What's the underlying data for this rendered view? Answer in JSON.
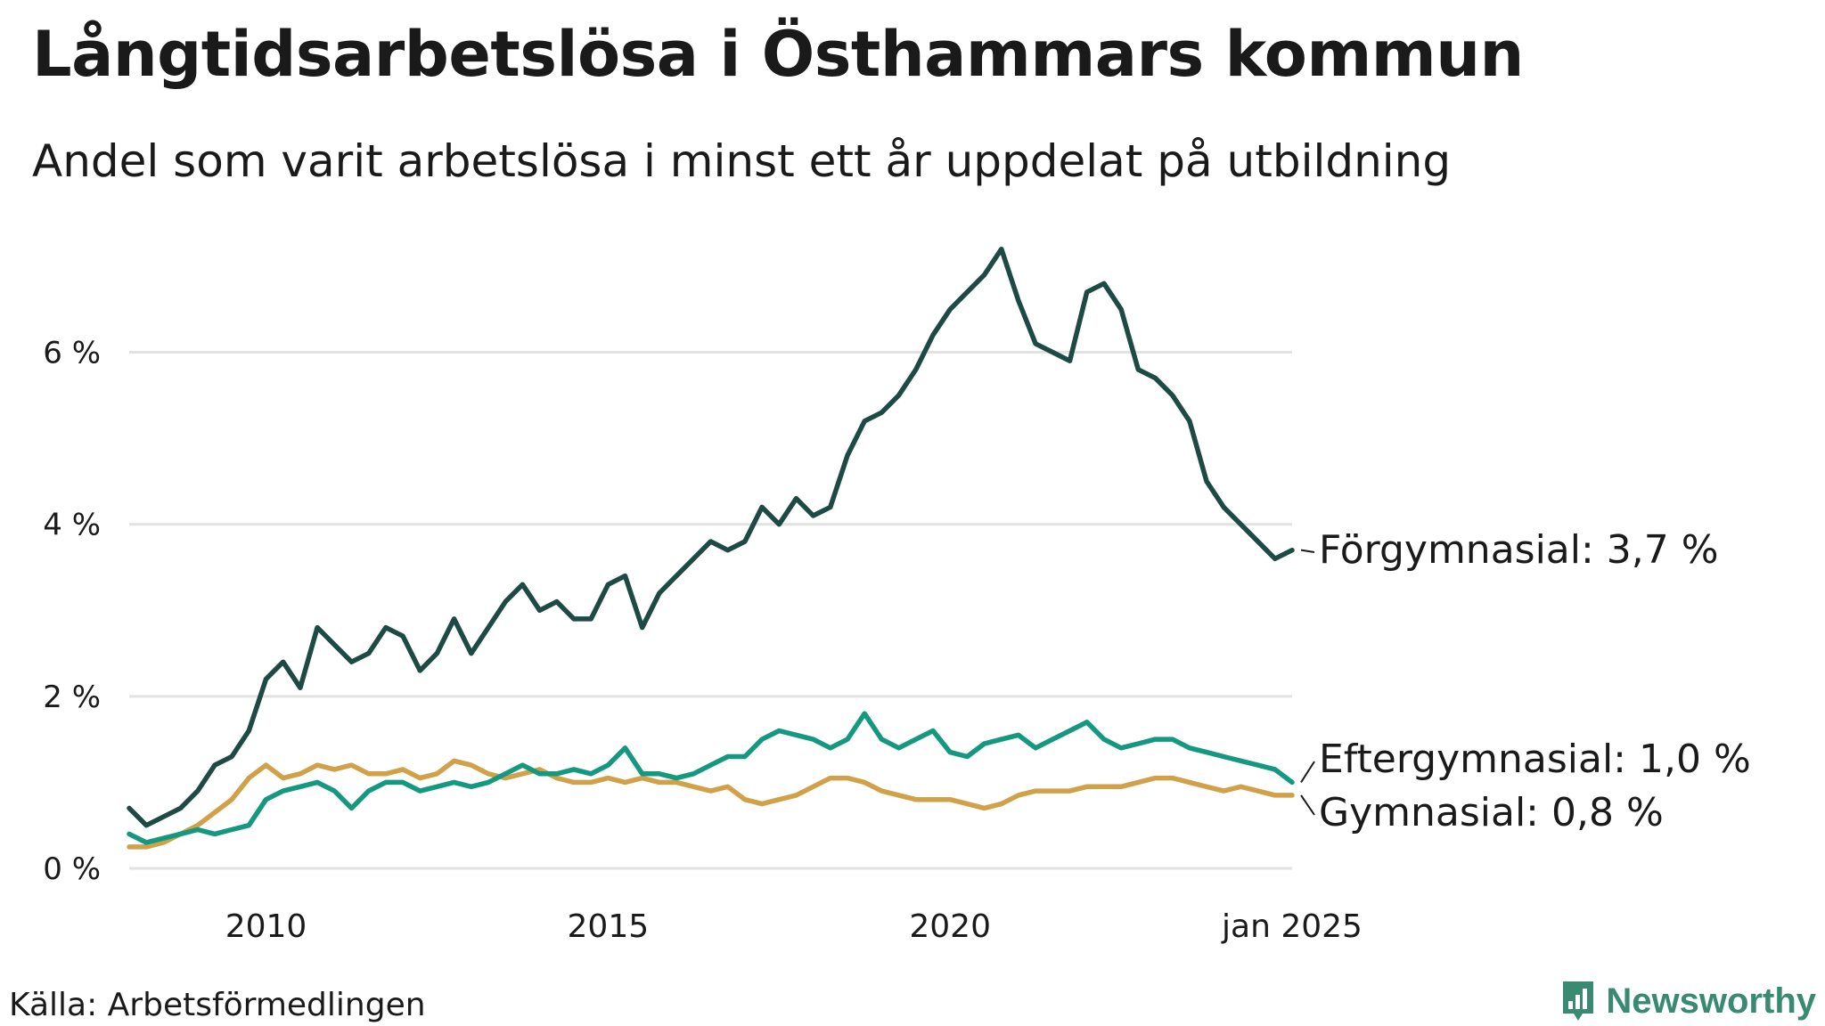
{
  "title": "Långtidsarbetslösa i Östhammars kommun",
  "subtitle": "Andel som varit arbetslösa i minst ett år uppdelat på utbildning",
  "source": "Källa: Arbetsförmedlingen",
  "logo_text": "Newsworthy",
  "chart_data": {
    "type": "line",
    "title": "Långtidsarbetslösa i Östhammars kommun",
    "subtitle": "Andel som varit arbetslösa i minst ett år uppdelat på utbildning",
    "xlabel": "",
    "ylabel": "",
    "xlim": [
      2008.0,
      2025.0
    ],
    "ylim": [
      0,
      7.3
    ],
    "y_ticks": [
      0,
      2,
      4,
      6
    ],
    "y_tick_labels": [
      "0 %",
      "2 %",
      "4 %",
      "6 %"
    ],
    "x_ticks": [
      2010,
      2015,
      2020,
      2025
    ],
    "x_tick_labels": [
      "2010",
      "2015",
      "2020",
      "jan 2025"
    ],
    "grid": "horizontal",
    "legend": "direct labels at line ends (right)",
    "series": [
      {
        "name": "Förgymnasial",
        "end_label": "Förgymnasial: 3,7 %",
        "color": "#1e4a44",
        "x": [
          2008.0,
          2008.25,
          2008.5,
          2008.75,
          2009.0,
          2009.25,
          2009.5,
          2009.75,
          2010.0,
          2010.25,
          2010.5,
          2010.75,
          2011.0,
          2011.25,
          2011.5,
          2011.75,
          2012.0,
          2012.25,
          2012.5,
          2012.75,
          2013.0,
          2013.25,
          2013.5,
          2013.75,
          2014.0,
          2014.25,
          2014.5,
          2014.75,
          2015.0,
          2015.25,
          2015.5,
          2015.75,
          2016.0,
          2016.25,
          2016.5,
          2016.75,
          2017.0,
          2017.25,
          2017.5,
          2017.75,
          2018.0,
          2018.25,
          2018.5,
          2018.75,
          2019.0,
          2019.25,
          2019.5,
          2019.75,
          2020.0,
          2020.25,
          2020.5,
          2020.75,
          2021.0,
          2021.25,
          2021.5,
          2021.75,
          2022.0,
          2022.25,
          2022.5,
          2022.75,
          2023.0,
          2023.25,
          2023.5,
          2023.75,
          2024.0,
          2024.25,
          2024.5,
          2024.75,
          2025.0
        ],
        "values": [
          0.7,
          0.5,
          0.6,
          0.7,
          0.9,
          1.2,
          1.3,
          1.6,
          2.2,
          2.4,
          2.1,
          2.8,
          2.6,
          2.4,
          2.5,
          2.8,
          2.7,
          2.3,
          2.5,
          2.9,
          2.5,
          2.8,
          3.1,
          3.3,
          3.0,
          3.1,
          2.9,
          2.9,
          3.3,
          3.4,
          2.8,
          3.2,
          3.4,
          3.6,
          3.8,
          3.7,
          3.8,
          4.2,
          4.0,
          4.3,
          4.1,
          4.2,
          4.8,
          5.2,
          5.3,
          5.5,
          5.8,
          6.2,
          6.5,
          6.7,
          6.9,
          7.2,
          6.6,
          6.1,
          6.0,
          5.9,
          6.7,
          6.8,
          6.5,
          5.8,
          5.7,
          5.5,
          5.2,
          4.5,
          4.2,
          4.0,
          3.8,
          3.6,
          3.7
        ]
      },
      {
        "name": "Eftergymnasial",
        "end_label": "Eftergymnasial: 1,0 %",
        "color": "#159880",
        "x": [
          2008.0,
          2008.25,
          2008.5,
          2008.75,
          2009.0,
          2009.25,
          2009.5,
          2009.75,
          2010.0,
          2010.25,
          2010.5,
          2010.75,
          2011.0,
          2011.25,
          2011.5,
          2011.75,
          2012.0,
          2012.25,
          2012.5,
          2012.75,
          2013.0,
          2013.25,
          2013.5,
          2013.75,
          2014.0,
          2014.25,
          2014.5,
          2014.75,
          2015.0,
          2015.25,
          2015.5,
          2015.75,
          2016.0,
          2016.25,
          2016.5,
          2016.75,
          2017.0,
          2017.25,
          2017.5,
          2017.75,
          2018.0,
          2018.25,
          2018.5,
          2018.75,
          2019.0,
          2019.25,
          2019.5,
          2019.75,
          2020.0,
          2020.25,
          2020.5,
          2020.75,
          2021.0,
          2021.25,
          2021.5,
          2021.75,
          2022.0,
          2022.25,
          2022.5,
          2022.75,
          2023.0,
          2023.25,
          2023.5,
          2023.75,
          2024.0,
          2024.25,
          2024.5,
          2024.75,
          2025.0
        ],
        "values": [
          0.4,
          0.3,
          0.35,
          0.4,
          0.45,
          0.4,
          0.45,
          0.5,
          0.8,
          0.9,
          0.95,
          1.0,
          0.9,
          0.7,
          0.9,
          1.0,
          1.0,
          0.9,
          0.95,
          1.0,
          0.95,
          1.0,
          1.1,
          1.2,
          1.1,
          1.1,
          1.15,
          1.1,
          1.2,
          1.4,
          1.1,
          1.1,
          1.05,
          1.1,
          1.2,
          1.3,
          1.3,
          1.5,
          1.6,
          1.55,
          1.5,
          1.4,
          1.5,
          1.8,
          1.5,
          1.4,
          1.5,
          1.6,
          1.35,
          1.3,
          1.45,
          1.5,
          1.55,
          1.4,
          1.5,
          1.6,
          1.7,
          1.5,
          1.4,
          1.45,
          1.5,
          1.5,
          1.4,
          1.35,
          1.3,
          1.25,
          1.2,
          1.15,
          1.0
        ]
      },
      {
        "name": "Gymnasial",
        "end_label": "Gymnasial: 0,8 %",
        "color": "#d1a14a",
        "x": [
          2008.0,
          2008.25,
          2008.5,
          2008.75,
          2009.0,
          2009.25,
          2009.5,
          2009.75,
          2010.0,
          2010.25,
          2010.5,
          2010.75,
          2011.0,
          2011.25,
          2011.5,
          2011.75,
          2012.0,
          2012.25,
          2012.5,
          2012.75,
          2013.0,
          2013.25,
          2013.5,
          2013.75,
          2014.0,
          2014.25,
          2014.5,
          2014.75,
          2015.0,
          2015.25,
          2015.5,
          2015.75,
          2016.0,
          2016.25,
          2016.5,
          2016.75,
          2017.0,
          2017.25,
          2017.5,
          2017.75,
          2018.0,
          2018.25,
          2018.5,
          2018.75,
          2019.0,
          2019.25,
          2019.5,
          2019.75,
          2020.0,
          2020.25,
          2020.5,
          2020.75,
          2021.0,
          2021.25,
          2021.5,
          2021.75,
          2022.0,
          2022.25,
          2022.5,
          2022.75,
          2023.0,
          2023.25,
          2023.5,
          2023.75,
          2024.0,
          2024.25,
          2024.5,
          2024.75,
          2025.0
        ],
        "values": [
          0.25,
          0.25,
          0.3,
          0.4,
          0.5,
          0.65,
          0.8,
          1.05,
          1.2,
          1.05,
          1.1,
          1.2,
          1.15,
          1.2,
          1.1,
          1.1,
          1.15,
          1.05,
          1.1,
          1.25,
          1.2,
          1.1,
          1.05,
          1.1,
          1.15,
          1.05,
          1.0,
          1.0,
          1.05,
          1.0,
          1.05,
          1.0,
          1.0,
          0.95,
          0.9,
          0.95,
          0.8,
          0.75,
          0.8,
          0.85,
          0.95,
          1.05,
          1.05,
          1.0,
          0.9,
          0.85,
          0.8,
          0.8,
          0.8,
          0.75,
          0.7,
          0.75,
          0.85,
          0.9,
          0.9,
          0.9,
          0.95,
          0.95,
          0.95,
          1.0,
          1.05,
          1.05,
          1.0,
          0.95,
          0.9,
          0.95,
          0.9,
          0.85,
          0.85
        ]
      }
    ]
  }
}
